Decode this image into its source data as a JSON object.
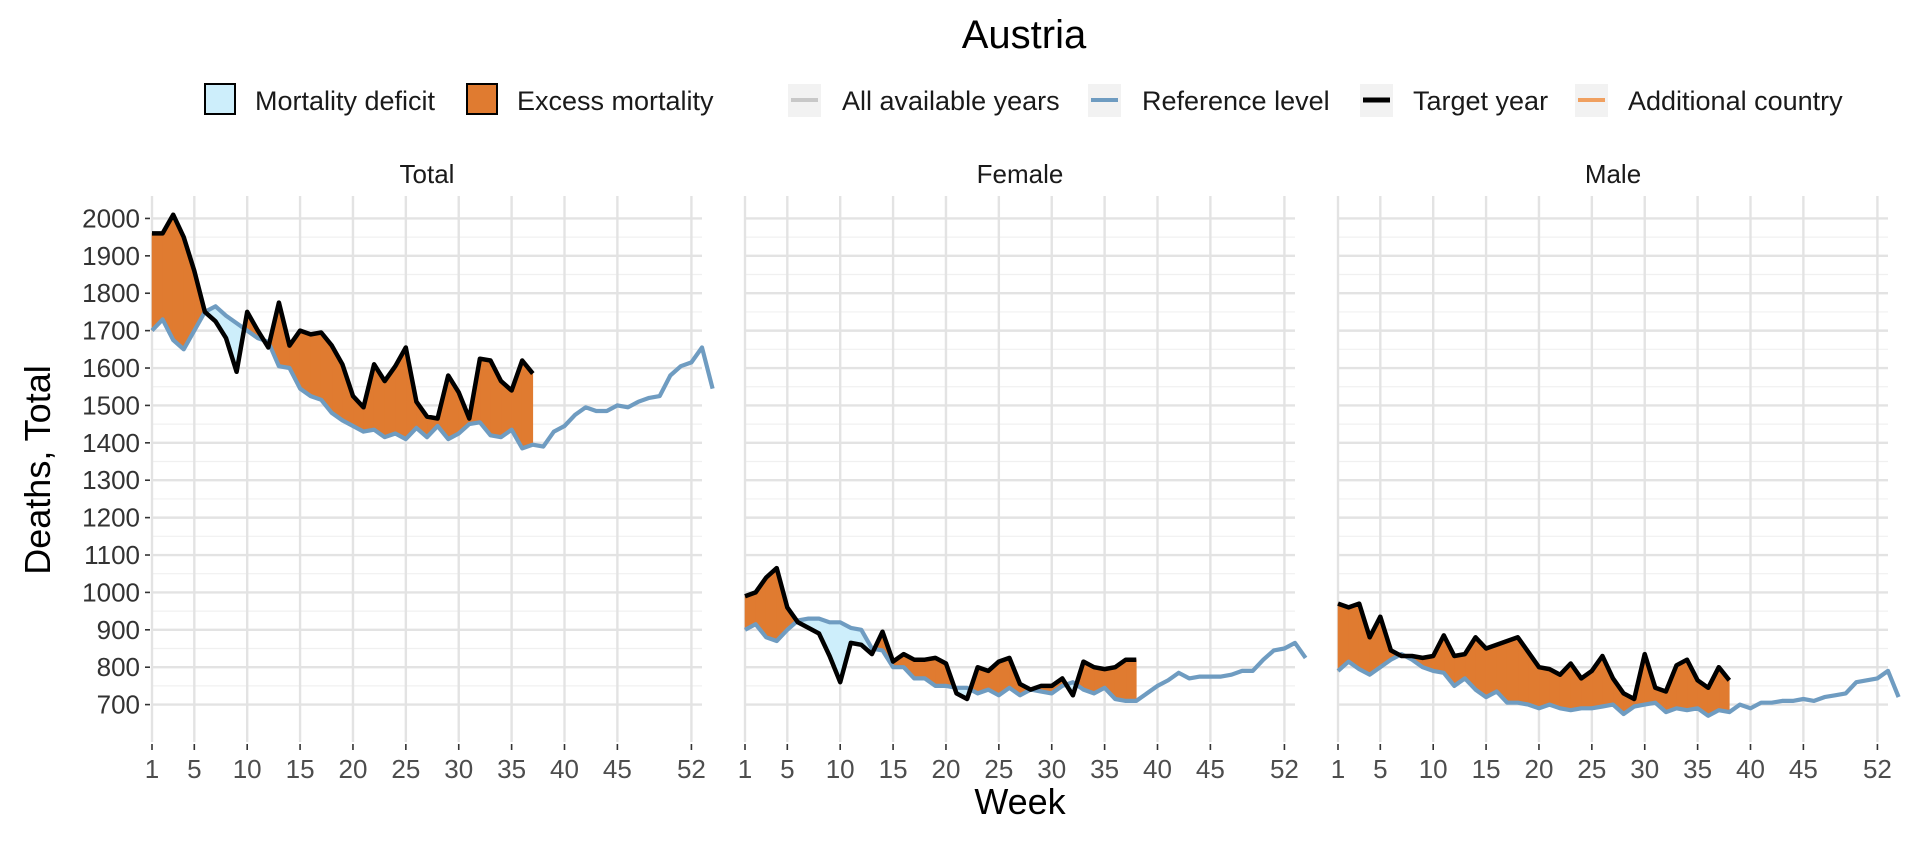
{
  "chart_data": {
    "type": "line",
    "title": "Austria",
    "xlabel": "Week",
    "ylabel": "Deaths, Total",
    "xlim": [
      1,
      53
    ],
    "ylim": [
      600,
      2060
    ],
    "x_ticks": [
      1,
      5,
      10,
      15,
      20,
      25,
      30,
      35,
      40,
      45,
      52
    ],
    "y_ticks": [
      700,
      800,
      900,
      1000,
      1100,
      1200,
      1300,
      1400,
      1500,
      1600,
      1700,
      1800,
      1900,
      2000
    ],
    "grid": true,
    "legend_position": "top",
    "legend": {
      "fills": [
        {
          "label": "Mortality deficit",
          "color": "#cdeefb"
        },
        {
          "label": "Excess mortality",
          "color": "#e07b30"
        }
      ],
      "lines": [
        {
          "label": "All available years",
          "color": "#c8c8c8"
        },
        {
          "label": "Reference level",
          "color": "#6f9cc1"
        },
        {
          "label": "Target year",
          "color": "#000000"
        },
        {
          "label": "Additional country",
          "color": "#f0a060"
        }
      ]
    },
    "colors": {
      "excess": "#e07b30",
      "deficit": "#cdeefb",
      "reference": "#6f9cc1",
      "target": "#000000"
    },
    "panels": [
      {
        "name": "Total",
        "reference": [
          1700,
          1730,
          1675,
          1650,
          1700,
          1750,
          1765,
          1740,
          1720,
          1700,
          1680,
          1670,
          1605,
          1600,
          1545,
          1525,
          1515,
          1480,
          1460,
          1445,
          1430,
          1435,
          1415,
          1425,
          1410,
          1440,
          1415,
          1445,
          1410,
          1425,
          1450,
          1455,
          1420,
          1415,
          1435,
          1385,
          1395,
          1390,
          1430,
          1445,
          1475,
          1495,
          1485,
          1485,
          1500,
          1495,
          1510,
          1520,
          1525,
          1580,
          1605,
          1615,
          1655,
          1545
        ],
        "target": [
          1960,
          1960,
          2010,
          1950,
          1860,
          1750,
          1725,
          1680,
          1590,
          1750,
          1700,
          1655,
          1775,
          1660,
          1700,
          1690,
          1695,
          1660,
          1610,
          1525,
          1495,
          1610,
          1565,
          1605,
          1655,
          1510,
          1470,
          1465,
          1580,
          1535,
          1465,
          1625,
          1620,
          1565,
          1540,
          1620,
          1585
        ]
      },
      {
        "name": "Female",
        "reference": [
          900,
          915,
          880,
          870,
          900,
          925,
          930,
          930,
          920,
          920,
          905,
          900,
          850,
          845,
          800,
          800,
          770,
          770,
          750,
          750,
          745,
          745,
          730,
          740,
          725,
          745,
          725,
          740,
          735,
          730,
          750,
          760,
          740,
          730,
          745,
          715,
          710,
          710,
          730,
          750,
          765,
          785,
          770,
          775,
          775,
          775,
          780,
          790,
          790,
          820,
          845,
          850,
          865,
          825
        ],
        "target": [
          990,
          1000,
          1040,
          1065,
          960,
          920,
          905,
          890,
          830,
          760,
          865,
          860,
          835,
          895,
          815,
          835,
          820,
          820,
          825,
          810,
          730,
          715,
          800,
          790,
          815,
          825,
          755,
          740,
          750,
          750,
          770,
          725,
          815,
          800,
          795,
          800,
          820,
          820
        ]
      },
      {
        "name": "Male",
        "reference": [
          790,
          815,
          795,
          780,
          800,
          820,
          835,
          820,
          800,
          790,
          785,
          750,
          770,
          740,
          720,
          735,
          705,
          705,
          700,
          690,
          700,
          690,
          685,
          690,
          690,
          695,
          700,
          675,
          695,
          700,
          705,
          680,
          690,
          685,
          690,
          670,
          685,
          680,
          700,
          690,
          705,
          705,
          710,
          710,
          715,
          710,
          720,
          725,
          730,
          760,
          765,
          770,
          790,
          720
        ],
        "target": [
          970,
          960,
          970,
          880,
          935,
          845,
          830,
          830,
          825,
          830,
          885,
          830,
          835,
          880,
          850,
          860,
          870,
          880,
          840,
          800,
          795,
          780,
          810,
          770,
          790,
          830,
          770,
          730,
          715,
          835,
          745,
          735,
          805,
          820,
          765,
          745,
          800,
          765
        ]
      }
    ]
  }
}
